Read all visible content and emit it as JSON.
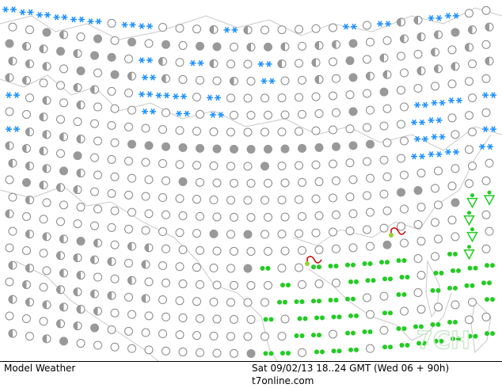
{
  "footer": {
    "left": "Model Weather",
    "datetime": "Sat 09/02/13 18..24 GMT (Wed 06 + 90h)",
    "site": "t7online.com"
  },
  "watermark": "7CH"
}
